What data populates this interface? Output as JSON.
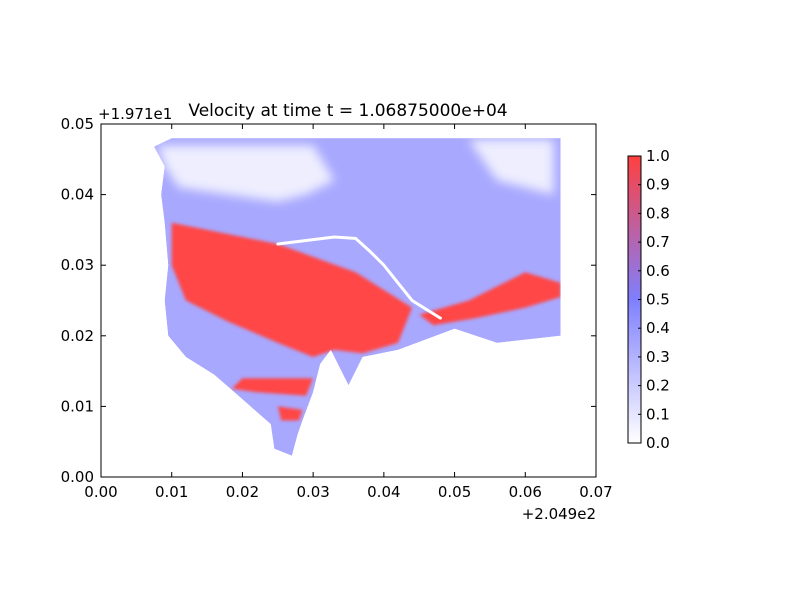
{
  "chart_data": {
    "type": "heatmap",
    "title": "Velocity at time t = 1.06875000e+04",
    "x_offset_label": "+2.049e2",
    "y_offset_label": "+1.971e1",
    "xlim": [
      0.0,
      0.07
    ],
    "ylim": [
      0.0,
      0.05
    ],
    "x_ticks": [
      0.0,
      0.01,
      0.02,
      0.03,
      0.04,
      0.05,
      0.06,
      0.07
    ],
    "x_tick_labels": [
      "0.00",
      "0.01",
      "0.02",
      "0.03",
      "0.04",
      "0.05",
      "0.06",
      "0.07"
    ],
    "y_ticks": [
      0.0,
      0.01,
      0.02,
      0.03,
      0.04,
      0.05
    ],
    "y_tick_labels": [
      "0.00",
      "0.01",
      "0.02",
      "0.03",
      "0.04",
      "0.05"
    ],
    "colorbar": {
      "range": [
        0.0,
        1.0
      ],
      "ticks": [
        0.0,
        0.1,
        0.2,
        0.3,
        0.4,
        0.5,
        0.6,
        0.7,
        0.8,
        0.9,
        1.0
      ],
      "tick_labels": [
        "0.0",
        "0.1",
        "0.2",
        "0.3",
        "0.4",
        "0.5",
        "0.6",
        "0.7",
        "0.8",
        "0.9",
        "1.0"
      ],
      "colors": [
        "#ffffff",
        "#7f7fff",
        "#ff4040"
      ]
    },
    "grid": false,
    "domain_outline": [
      [
        0.0075,
        0.0468
      ],
      [
        0.01,
        0.048
      ],
      [
        0.065,
        0.048
      ],
      [
        0.065,
        0.02
      ],
      [
        0.056,
        0.019
      ],
      [
        0.05,
        0.021
      ],
      [
        0.042,
        0.018
      ],
      [
        0.037,
        0.017
      ],
      [
        0.036,
        0.015
      ],
      [
        0.035,
        0.013
      ],
      [
        0.034,
        0.015
      ],
      [
        0.0325,
        0.018
      ],
      [
        0.031,
        0.016
      ],
      [
        0.03,
        0.012
      ],
      [
        0.0285,
        0.008
      ],
      [
        0.0278,
        0.006
      ],
      [
        0.027,
        0.003
      ],
      [
        0.0245,
        0.004
      ],
      [
        0.024,
        0.0075
      ],
      [
        0.02,
        0.011
      ],
      [
        0.016,
        0.0145
      ],
      [
        0.012,
        0.017
      ],
      [
        0.0095,
        0.02
      ],
      [
        0.009,
        0.025
      ],
      [
        0.0095,
        0.03
      ],
      [
        0.009,
        0.036
      ],
      [
        0.0085,
        0.04
      ],
      [
        0.009,
        0.044
      ]
    ],
    "high_velocity_regions": [
      [
        [
          0.01,
          0.036
        ],
        [
          0.025,
          0.033
        ],
        [
          0.036,
          0.029
        ],
        [
          0.044,
          0.024
        ],
        [
          0.042,
          0.019
        ],
        [
          0.037,
          0.0175
        ],
        [
          0.033,
          0.018
        ],
        [
          0.03,
          0.017
        ],
        [
          0.025,
          0.019
        ],
        [
          0.018,
          0.022
        ],
        [
          0.012,
          0.025
        ],
        [
          0.01,
          0.03
        ]
      ],
      [
        [
          0.02,
          0.014
        ],
        [
          0.03,
          0.014
        ],
        [
          0.029,
          0.0115
        ],
        [
          0.022,
          0.012
        ],
        [
          0.0185,
          0.0125
        ]
      ],
      [
        [
          0.025,
          0.01
        ],
        [
          0.0285,
          0.0095
        ],
        [
          0.028,
          0.008
        ],
        [
          0.0255,
          0.008
        ]
      ],
      [
        [
          0.045,
          0.023
        ],
        [
          0.052,
          0.025
        ],
        [
          0.06,
          0.029
        ],
        [
          0.065,
          0.0275
        ],
        [
          0.065,
          0.0255
        ],
        [
          0.06,
          0.024
        ],
        [
          0.053,
          0.0225
        ],
        [
          0.047,
          0.0215
        ]
      ]
    ],
    "low_velocity_regions": [
      [
        [
          0.008,
          0.047
        ],
        [
          0.03,
          0.047
        ],
        [
          0.033,
          0.042
        ],
        [
          0.029,
          0.04
        ],
        [
          0.025,
          0.039
        ],
        [
          0.018,
          0.04
        ],
        [
          0.011,
          0.041
        ],
        [
          0.009,
          0.044
        ]
      ],
      [
        [
          0.052,
          0.0478
        ],
        [
          0.064,
          0.0478
        ],
        [
          0.064,
          0.04
        ],
        [
          0.056,
          0.042
        ]
      ]
    ],
    "streak": [
      [
        0.025,
        0.033
      ],
      [
        0.029,
        0.0335
      ],
      [
        0.033,
        0.034
      ],
      [
        0.036,
        0.0338
      ],
      [
        0.038,
        0.032
      ],
      [
        0.04,
        0.03
      ],
      [
        0.042,
        0.0275
      ],
      [
        0.044,
        0.025
      ],
      [
        0.048,
        0.0225
      ]
    ]
  }
}
